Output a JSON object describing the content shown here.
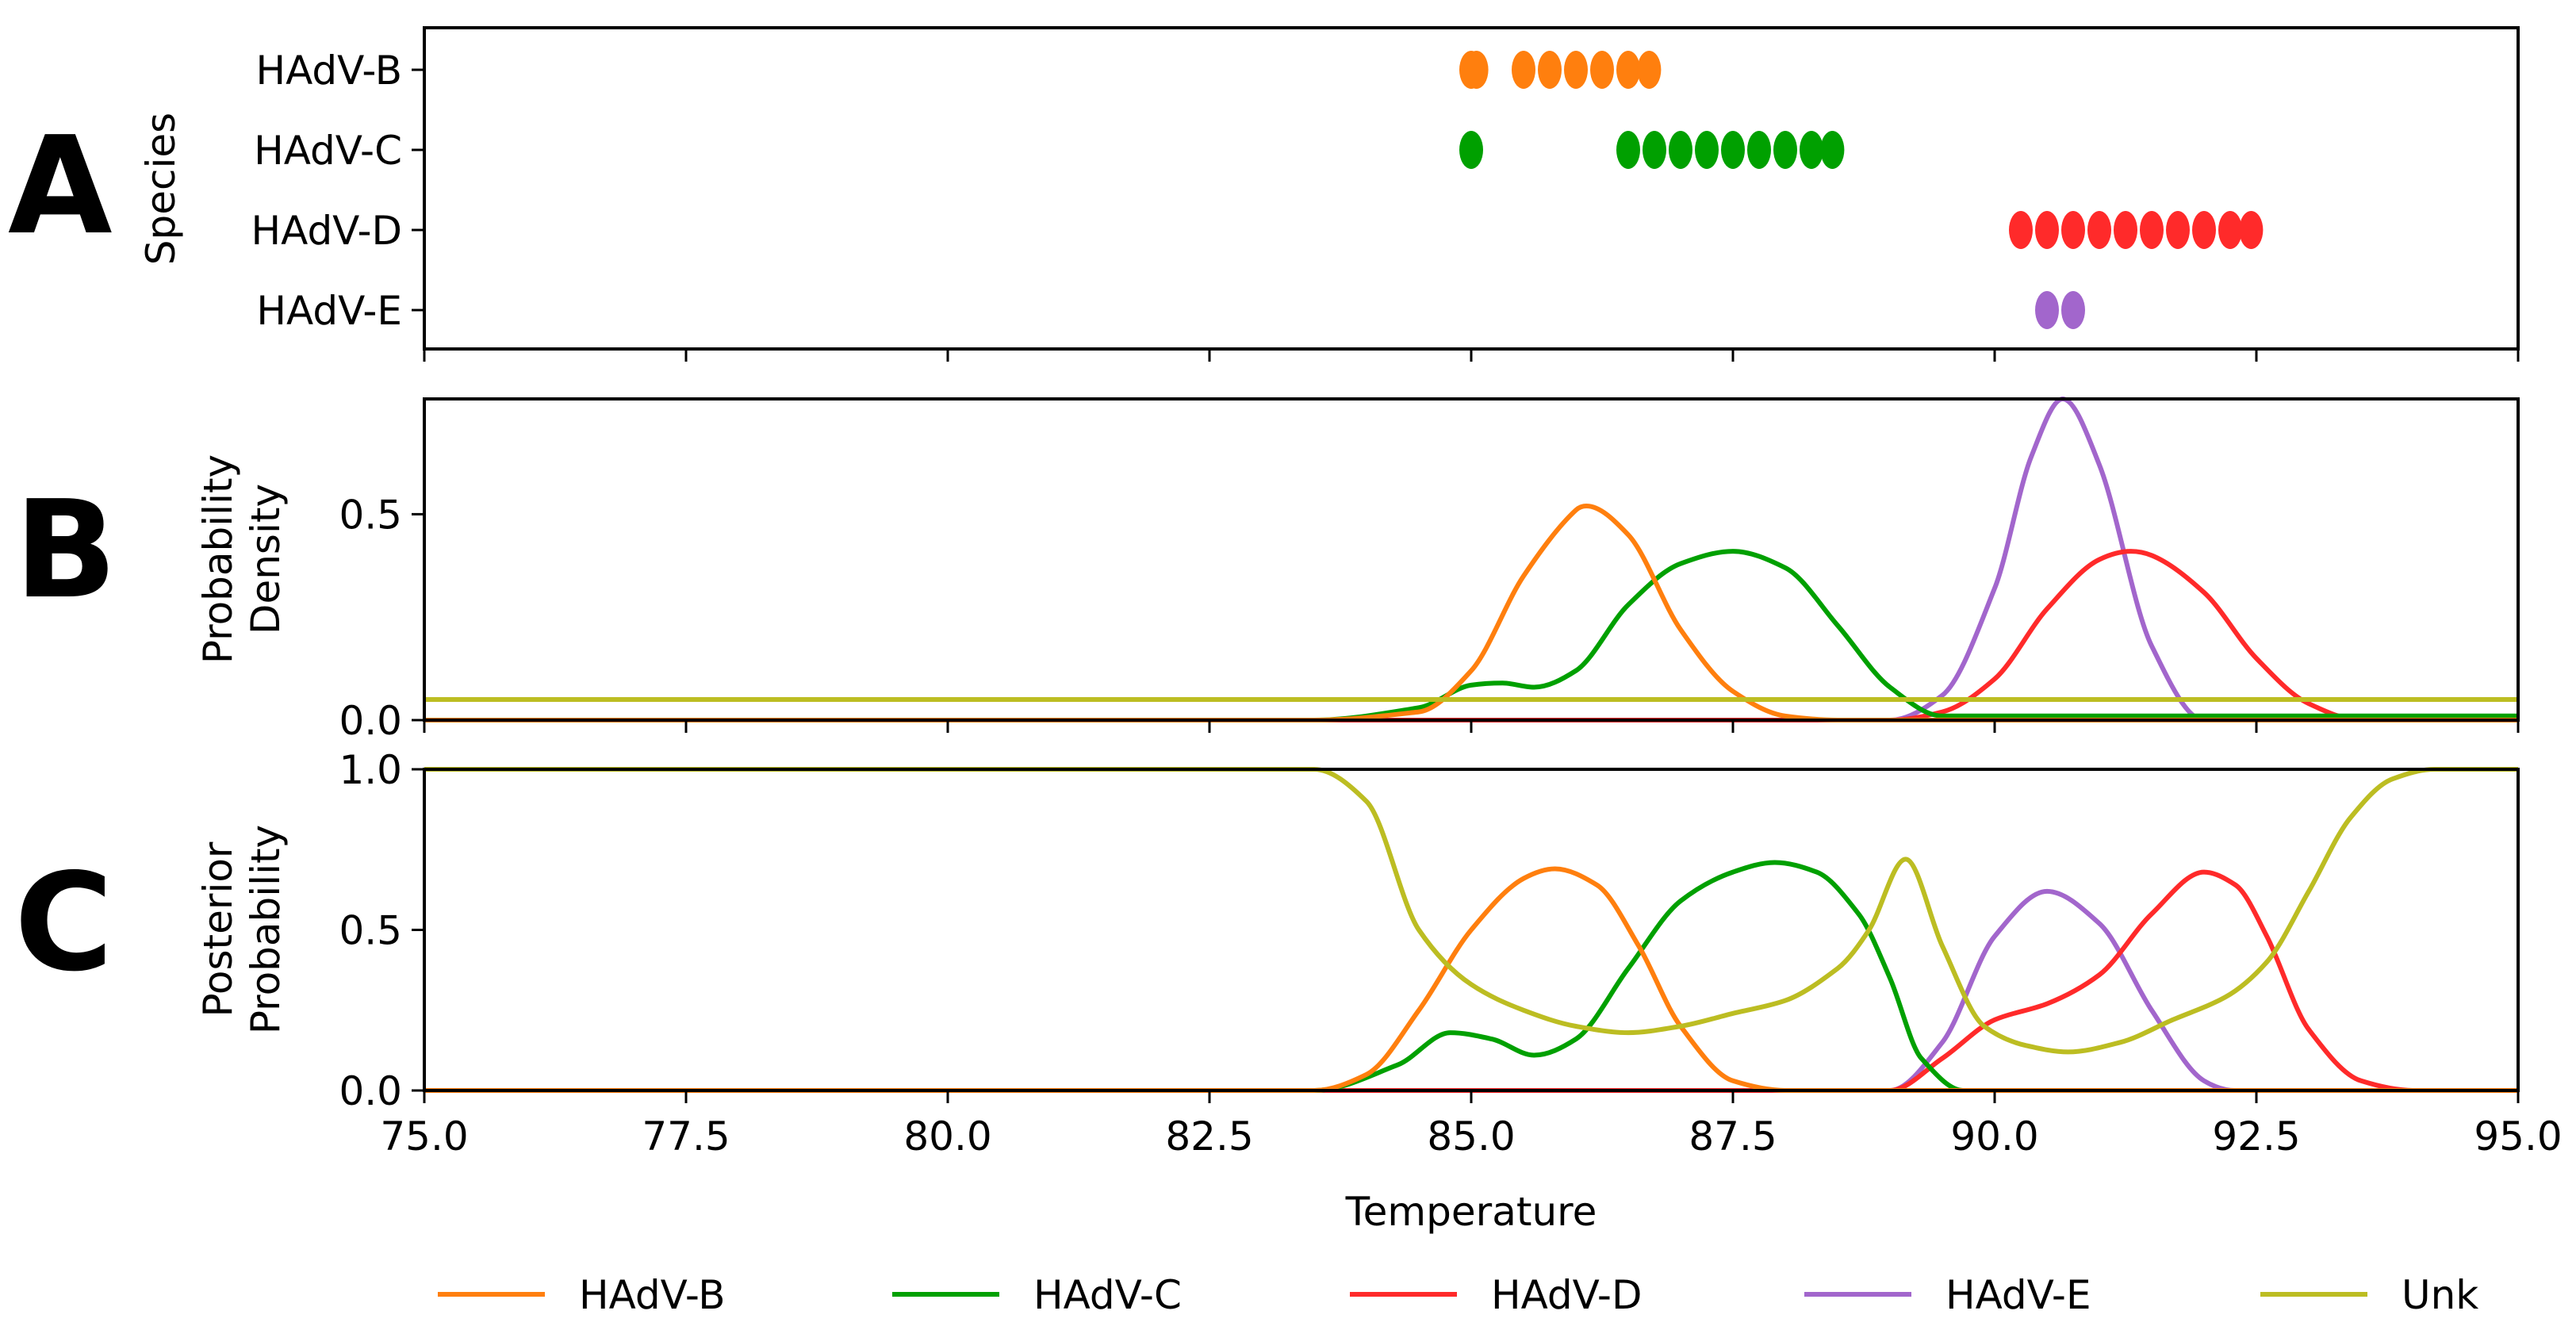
{
  "panel_letters": [
    "A",
    "B",
    "C"
  ],
  "colors": {
    "HAdV-B": "#ff7f0e",
    "HAdV-C": "#00a000",
    "HAdV-D": "#ff2a2a",
    "HAdV-E": "#a266cc",
    "Unk": "#bcbd22"
  },
  "chart_data": [
    {
      "type": "scatter",
      "panel": "A",
      "ylabel": "Species",
      "xlim": [
        75,
        95
      ],
      "categories": [
        "HAdV-B",
        "HAdV-C",
        "HAdV-D",
        "HAdV-E"
      ],
      "series": [
        {
          "name": "HAdV-B",
          "x": [
            85.0,
            85.05,
            85.5,
            85.75,
            86.0,
            86.25,
            86.5,
            86.7
          ]
        },
        {
          "name": "HAdV-C",
          "x": [
            85.0,
            86.5,
            86.75,
            87.0,
            87.25,
            87.5,
            87.75,
            88.0,
            88.25,
            88.45
          ]
        },
        {
          "name": "HAdV-D",
          "x": [
            90.25,
            90.5,
            90.75,
            91.0,
            91.25,
            91.5,
            91.75,
            92.0,
            92.25,
            92.45
          ]
        },
        {
          "name": "HAdV-E",
          "x": [
            90.5,
            90.75
          ]
        }
      ]
    },
    {
      "type": "line",
      "panel": "B",
      "ylabel": "Probability\nDensity",
      "xlim": [
        75,
        95
      ],
      "ylim": [
        0,
        0.78
      ],
      "yticks": [
        "0.0",
        "0.5"
      ],
      "series": [
        {
          "name": "HAdV-B",
          "x": [
            83.5,
            84.5,
            85.0,
            85.5,
            86.0,
            86.1,
            86.5,
            87.0,
            87.5,
            88.0,
            88.5
          ],
          "values": [
            0.0,
            0.02,
            0.12,
            0.35,
            0.51,
            0.52,
            0.45,
            0.22,
            0.07,
            0.01,
            0.0
          ]
        },
        {
          "name": "HAdV-C",
          "x": [
            83.5,
            84.5,
            85.0,
            85.3,
            85.6,
            86.0,
            86.5,
            87.0,
            87.5,
            88.0,
            88.5,
            89.0,
            89.5
          ],
          "values": [
            0.0,
            0.03,
            0.085,
            0.09,
            0.08,
            0.12,
            0.28,
            0.38,
            0.41,
            0.37,
            0.23,
            0.08,
            0.01
          ]
        },
        {
          "name": "HAdV-D",
          "x": [
            89.0,
            89.5,
            90.0,
            90.5,
            91.0,
            91.3,
            91.5,
            92.0,
            92.5,
            93.0,
            93.5
          ],
          "values": [
            0.0,
            0.02,
            0.1,
            0.27,
            0.39,
            0.41,
            0.4,
            0.31,
            0.15,
            0.04,
            0.0
          ]
        },
        {
          "name": "HAdV-E",
          "x": [
            89.0,
            89.5,
            90.0,
            90.35,
            90.65,
            91.0,
            91.5,
            92.0
          ],
          "values": [
            0.0,
            0.06,
            0.32,
            0.64,
            0.78,
            0.62,
            0.18,
            0.0
          ]
        },
        {
          "name": "Unk",
          "x": [
            75,
            95
          ],
          "values": [
            0.05,
            0.05
          ]
        }
      ]
    },
    {
      "type": "line",
      "panel": "C",
      "ylabel": "Posterior\nProbability",
      "xlabel": "Temperature",
      "xlim": [
        75,
        95
      ],
      "ylim": [
        0,
        1.0
      ],
      "xticks": [
        "75.0",
        "77.5",
        "80.0",
        "82.5",
        "85.0",
        "87.5",
        "90.0",
        "92.5",
        "95.0"
      ],
      "yticks": [
        "0.0",
        "0.5",
        "1.0"
      ],
      "series": [
        {
          "name": "HAdV-B",
          "x": [
            83.5,
            84.0,
            84.5,
            85.0,
            85.5,
            85.8,
            86.2,
            86.6,
            87.0,
            87.5,
            88.0
          ],
          "values": [
            0.0,
            0.05,
            0.25,
            0.5,
            0.66,
            0.69,
            0.64,
            0.45,
            0.2,
            0.03,
            0.0
          ]
        },
        {
          "name": "HAdV-C",
          "x": [
            83.5,
            84.3,
            84.8,
            85.2,
            85.6,
            86.0,
            86.5,
            87.0,
            87.5,
            87.9,
            88.3,
            88.7,
            89.0,
            89.3,
            89.7
          ],
          "values": [
            0.0,
            0.08,
            0.18,
            0.16,
            0.11,
            0.16,
            0.38,
            0.59,
            0.68,
            0.71,
            0.68,
            0.55,
            0.35,
            0.1,
            0.0
          ]
        },
        {
          "name": "HAdV-D",
          "x": [
            89.0,
            89.5,
            90.0,
            90.5,
            91.0,
            91.5,
            92.0,
            92.3,
            92.6,
            93.0,
            93.5,
            94.0
          ],
          "values": [
            0.0,
            0.1,
            0.22,
            0.27,
            0.36,
            0.55,
            0.68,
            0.64,
            0.48,
            0.19,
            0.03,
            0.0
          ]
        },
        {
          "name": "HAdV-E",
          "x": [
            89.0,
            89.5,
            90.0,
            90.5,
            91.0,
            91.5,
            92.0,
            92.3
          ],
          "values": [
            0.0,
            0.15,
            0.48,
            0.62,
            0.52,
            0.25,
            0.03,
            0.0
          ]
        },
        {
          "name": "Unk",
          "x": [
            75,
            83.5,
            84.0,
            84.5,
            85.0,
            85.5,
            86.0,
            86.5,
            87.0,
            87.5,
            88.0,
            88.5,
            88.8,
            89.15,
            89.5,
            89.9,
            90.3,
            90.7,
            91.2,
            91.7,
            92.2,
            92.6,
            93.0,
            93.4,
            93.8,
            94.2,
            95
          ],
          "values": [
            1.0,
            1.0,
            0.9,
            0.5,
            0.33,
            0.25,
            0.2,
            0.18,
            0.2,
            0.24,
            0.28,
            0.38,
            0.5,
            0.72,
            0.45,
            0.2,
            0.14,
            0.12,
            0.15,
            0.22,
            0.29,
            0.4,
            0.62,
            0.85,
            0.97,
            1.0,
            1.0
          ]
        }
      ]
    }
  ],
  "legend": {
    "placement": "bottom",
    "entries": [
      "HAdV-B",
      "HAdV-C",
      "HAdV-D",
      "HAdV-E",
      "Unk"
    ]
  }
}
